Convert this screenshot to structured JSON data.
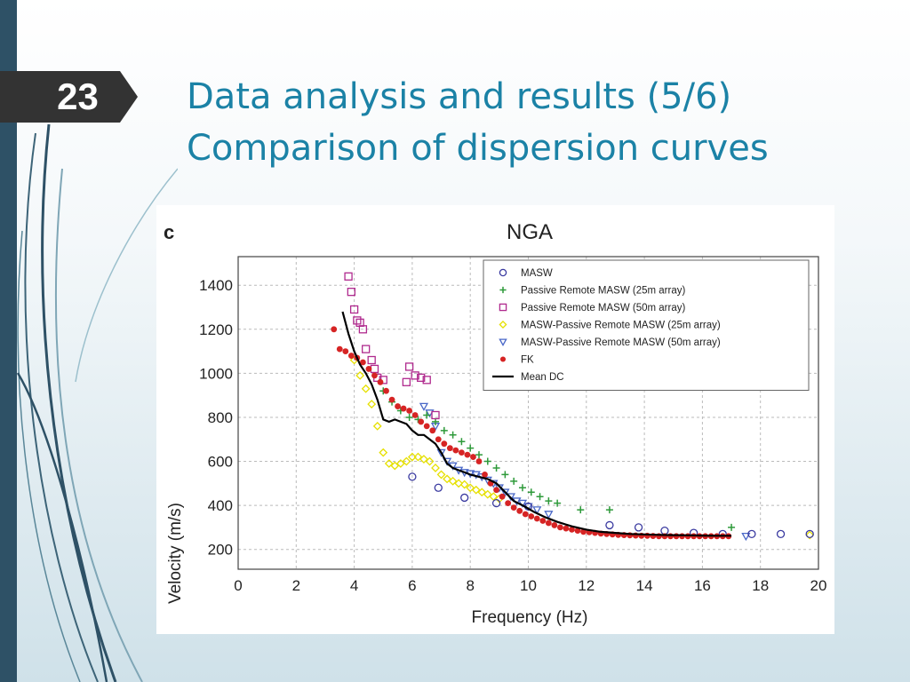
{
  "slide": {
    "number": "23",
    "title_line1": "Data analysis and results (5/6)",
    "title_line2": "Comparison of dispersion curves"
  },
  "colors": {
    "title": "#1b82a6",
    "left_bar": "#2e5166",
    "badge": "#333333"
  },
  "chart_data": {
    "type": "scatter",
    "panel_label": "c",
    "title": "NGA",
    "xlabel": "Frequency (Hz)",
    "ylabel": "Velocity (m/s)",
    "xlim": [
      0,
      20
    ],
    "ylim": [
      110,
      1530
    ],
    "xticks": [
      0,
      2,
      4,
      6,
      8,
      10,
      12,
      14,
      16,
      18,
      20
    ],
    "yticks": [
      200,
      400,
      600,
      800,
      1000,
      1200,
      1400
    ],
    "grid": true,
    "legend_position": "top-right",
    "series": [
      {
        "name": "MASW",
        "marker": "circle",
        "color": "#3a3aa0",
        "x": [
          6.0,
          6.9,
          7.8,
          8.9,
          10.0,
          12.8,
          13.8,
          14.7,
          15.7,
          16.7,
          17.7,
          18.7,
          19.7
        ],
        "y": [
          530,
          480,
          435,
          410,
          395,
          310,
          300,
          285,
          275,
          270,
          270,
          270,
          270
        ]
      },
      {
        "name": "Passive Remote MASW (25m array)",
        "marker": "plus",
        "color": "#2e9a3a",
        "x": [
          5.0,
          5.3,
          5.6,
          5.9,
          6.2,
          6.5,
          6.8,
          7.1,
          7.4,
          7.7,
          8.0,
          8.3,
          8.6,
          8.9,
          9.2,
          9.5,
          9.8,
          10.1,
          10.4,
          10.7,
          11.0,
          11.8,
          12.8,
          17.0
        ],
        "y": [
          920,
          870,
          830,
          800,
          790,
          810,
          780,
          740,
          720,
          690,
          660,
          630,
          600,
          570,
          540,
          510,
          480,
          460,
          440,
          420,
          410,
          380,
          380,
          300
        ]
      },
      {
        "name": "Passive Remote MASW (50m array)",
        "marker": "square",
        "color": "#b02a8e",
        "x": [
          3.8,
          3.9,
          4.0,
          4.1,
          4.2,
          4.3,
          4.4,
          4.6,
          4.7,
          4.8,
          5.0,
          5.8,
          5.9,
          6.1,
          6.3,
          6.5,
          6.8
        ],
        "y": [
          1440,
          1370,
          1290,
          1240,
          1230,
          1200,
          1110,
          1060,
          1020,
          980,
          970,
          960,
          1030,
          990,
          980,
          970,
          810
        ]
      },
      {
        "name": "MASW-Passive Remote MASW (25m array)",
        "marker": "diamond",
        "color": "#e6e000",
        "x": [
          4.0,
          4.2,
          4.4,
          4.6,
          4.8,
          5.0,
          5.2,
          5.4,
          5.6,
          5.8,
          6.0,
          6.2,
          6.4,
          6.6,
          6.8,
          7.0,
          7.2,
          7.4,
          7.6,
          7.8,
          8.0,
          8.2,
          8.4,
          8.6,
          8.8,
          9.0,
          19.7
        ],
        "y": [
          1060,
          990,
          930,
          860,
          760,
          640,
          590,
          580,
          590,
          600,
          620,
          620,
          610,
          600,
          570,
          540,
          520,
          510,
          500,
          495,
          480,
          470,
          460,
          450,
          440,
          430,
          265
        ]
      },
      {
        "name": "MASW-Passive Remote MASW (50m array)",
        "marker": "triangle-down",
        "color": "#4a68c8",
        "x": [
          6.4,
          6.6,
          6.8,
          7.0,
          7.2,
          7.4,
          7.6,
          7.8,
          8.0,
          8.2,
          8.4,
          8.6,
          8.8,
          9.0,
          9.2,
          9.4,
          9.6,
          9.8,
          10.0,
          10.3,
          10.7,
          17.5
        ],
        "y": [
          850,
          820,
          760,
          640,
          600,
          580,
          560,
          550,
          545,
          540,
          530,
          515,
          500,
          480,
          460,
          440,
          420,
          410,
          395,
          380,
          360,
          260
        ]
      },
      {
        "name": "FK",
        "marker": "dot",
        "color": "#d62424",
        "x": [
          3.3,
          3.5,
          3.7,
          3.9,
          4.1,
          4.3,
          4.5,
          4.7,
          4.9,
          5.1,
          5.3,
          5.5,
          5.7,
          5.9,
          6.1,
          6.3,
          6.5,
          6.7,
          6.9,
          7.1,
          7.3,
          7.5,
          7.7,
          7.9,
          8.1,
          8.3,
          8.5,
          8.7,
          8.9,
          9.1,
          9.3,
          9.5,
          9.7,
          9.9,
          10.1,
          10.3,
          10.5,
          10.7,
          10.9,
          11.1,
          11.3,
          11.5,
          11.7,
          11.9,
          12.1,
          12.3,
          12.5,
          12.7,
          12.9,
          13.1,
          13.3,
          13.5,
          13.7,
          13.9,
          14.1,
          14.3,
          14.5,
          14.7,
          14.9,
          15.1,
          15.3,
          15.5,
          15.7,
          15.9,
          16.1,
          16.3,
          16.5,
          16.7,
          16.9
        ],
        "y": [
          1200,
          1110,
          1100,
          1080,
          1070,
          1050,
          1020,
          990,
          960,
          920,
          880,
          850,
          840,
          830,
          810,
          780,
          760,
          740,
          700,
          680,
          660,
          650,
          640,
          630,
          620,
          600,
          540,
          500,
          470,
          440,
          410,
          390,
          375,
          360,
          350,
          340,
          330,
          320,
          310,
          300,
          295,
          290,
          285,
          280,
          278,
          275,
          272,
          270,
          268,
          266,
          265,
          264,
          263,
          262,
          262,
          261,
          260,
          260,
          260,
          260,
          260,
          260,
          260,
          260,
          260,
          260,
          260,
          260,
          260
        ]
      },
      {
        "name": "Mean DC",
        "marker": "line",
        "color": "#000000",
        "x": [
          3.6,
          3.8,
          4.0,
          4.2,
          4.4,
          4.6,
          4.8,
          5.0,
          5.2,
          5.4,
          5.6,
          5.8,
          6.0,
          6.2,
          6.4,
          6.6,
          6.8,
          7.0,
          7.2,
          7.4,
          7.6,
          7.8,
          8.0,
          8.3,
          8.6,
          8.9,
          9.2,
          9.5,
          9.8,
          10.2,
          10.6,
          11.0,
          11.5,
          12.0,
          12.5,
          13.0,
          13.5,
          14.0,
          14.5,
          15.0,
          15.5,
          16.0,
          16.5,
          17.0
        ],
        "y": [
          1280,
          1180,
          1100,
          1040,
          1000,
          950,
          880,
          790,
          780,
          790,
          780,
          770,
          740,
          720,
          720,
          700,
          680,
          640,
          590,
          570,
          560,
          550,
          540,
          530,
          520,
          500,
          460,
          420,
          400,
          370,
          345,
          325,
          305,
          290,
          280,
          275,
          270,
          268,
          266,
          265,
          264,
          263,
          262,
          262
        ]
      }
    ]
  }
}
